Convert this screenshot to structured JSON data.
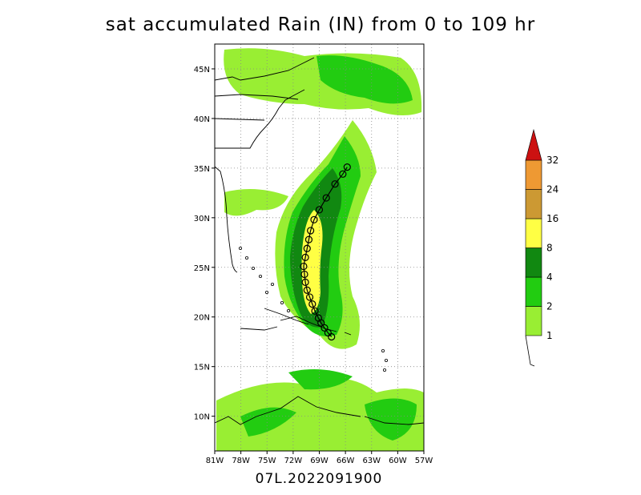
{
  "title": "sat accumulated Rain (IN) from 0 to 109 hr",
  "storm_id": "07L.2022091900",
  "map": {
    "lon_ticks": [
      "81W",
      "78W",
      "75W",
      "72W",
      "69W",
      "66W",
      "63W",
      "60W",
      "57W"
    ],
    "lat_ticks": [
      "45N",
      "40N",
      "35N",
      "30N",
      "25N",
      "20N",
      "15N",
      "10N"
    ],
    "lon_range": [
      -81,
      -57
    ],
    "lat_range": [
      6.5,
      47.5
    ]
  },
  "colorbar": {
    "levels": [
      "1",
      "2",
      "4",
      "8",
      "16",
      "24",
      "32"
    ],
    "colors": [
      "#99ee33",
      "#22cc11",
      "#118811",
      "#ffff44",
      "#cc9933",
      "#ee9933",
      "#cc1111"
    ]
  },
  "track_points": [
    [
      -67.6,
      18.0
    ],
    [
      -68.0,
      18.4
    ],
    [
      -68.4,
      18.9
    ],
    [
      -68.8,
      19.4
    ],
    [
      -69.1,
      19.9
    ],
    [
      -69.5,
      20.6
    ],
    [
      -69.8,
      21.3
    ],
    [
      -70.1,
      22.0
    ],
    [
      -70.4,
      22.7
    ],
    [
      -70.6,
      23.5
    ],
    [
      -70.7,
      24.3
    ],
    [
      -70.8,
      25.1
    ],
    [
      -70.6,
      26.0
    ],
    [
      -70.4,
      26.9
    ],
    [
      -70.2,
      27.8
    ],
    [
      -70.0,
      28.7
    ],
    [
      -69.6,
      29.8
    ],
    [
      -69.0,
      30.8
    ],
    [
      -68.2,
      32.0
    ],
    [
      -67.2,
      33.4
    ],
    [
      -66.3,
      34.4
    ],
    [
      -65.8,
      35.1
    ]
  ]
}
